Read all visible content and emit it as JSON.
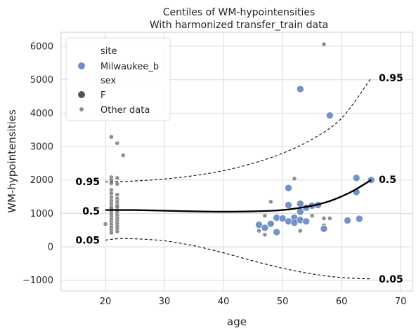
{
  "chart_data": {
    "type": "scatter",
    "title": "Centiles of WM-hypointensities",
    "subtitle": "With harmonized transfer_train data",
    "xlabel": "age",
    "ylabel": "WM-hypointensities",
    "xlim": [
      12.5,
      72
    ],
    "ylim": [
      -1320,
      6420
    ],
    "xticks": [
      20,
      30,
      40,
      50,
      60,
      70
    ],
    "yticks": [
      -1000,
      0,
      1000,
      2000,
      3000,
      4000,
      5000,
      6000
    ],
    "grid": true,
    "legend": {
      "placement": "top-left",
      "entries": [
        {
          "kind": "header",
          "label": "site"
        },
        {
          "kind": "marker",
          "label": "Milwaukee_b",
          "color": "#6b8cc4",
          "size": "large"
        },
        {
          "kind": "header",
          "label": "sex"
        },
        {
          "kind": "marker",
          "label": "F",
          "color": "#555555",
          "size": "large"
        },
        {
          "kind": "marker",
          "label": "Other data",
          "color": "#8f8f8f",
          "size": "small"
        }
      ]
    },
    "colors": {
      "site_points": "#6b8cc4",
      "other_points": "#7c7c7c",
      "median_line": "#000000",
      "outer_lines": "#000000"
    },
    "centiles": [
      {
        "label": "0.95",
        "style": "dashed",
        "left_value": 1950,
        "right_value": 5060,
        "points": [
          [
            20,
            1940
          ],
          [
            25,
            1970
          ],
          [
            30,
            2030
          ],
          [
            35,
            2130
          ],
          [
            40,
            2280
          ],
          [
            45,
            2500
          ],
          [
            50,
            2800
          ],
          [
            55,
            3220
          ],
          [
            60,
            3850
          ],
          [
            65,
            5050
          ]
        ]
      },
      {
        "label": "0.5",
        "style": "solid",
        "left_value": 1070,
        "right_value": 2010,
        "points": [
          [
            20,
            1100
          ],
          [
            25,
            1100
          ],
          [
            30,
            1080
          ],
          [
            35,
            1060
          ],
          [
            40,
            1050
          ],
          [
            45,
            1060
          ],
          [
            50,
            1100
          ],
          [
            55,
            1230
          ],
          [
            58,
            1370
          ],
          [
            60,
            1510
          ],
          [
            62,
            1680
          ],
          [
            65,
            2000
          ]
        ]
      },
      {
        "label": "0.05",
        "style": "dashed",
        "left_value": 200,
        "right_value": -960,
        "points": [
          [
            20,
            200
          ],
          [
            22,
            240
          ],
          [
            25,
            240
          ],
          [
            30,
            180
          ],
          [
            35,
            30
          ],
          [
            40,
            -180
          ],
          [
            45,
            -420
          ],
          [
            50,
            -640
          ],
          [
            55,
            -810
          ],
          [
            60,
            -920
          ],
          [
            65,
            -960
          ]
        ]
      }
    ],
    "series": [
      {
        "name": "Milwaukee_b",
        "marker": "large",
        "points": [
          [
            53,
            4720
          ],
          [
            58,
            3930
          ],
          [
            62.5,
            2060
          ],
          [
            65,
            2000
          ],
          [
            51,
            1760
          ],
          [
            62.5,
            1640
          ],
          [
            51,
            1250
          ],
          [
            53,
            1290
          ],
          [
            55,
            1230
          ],
          [
            56,
            1250
          ],
          [
            54,
            1170
          ],
          [
            53,
            1050
          ],
          [
            46,
            660
          ],
          [
            47,
            570
          ],
          [
            48,
            690
          ],
          [
            49,
            870
          ],
          [
            50,
            850
          ],
          [
            51,
            760
          ],
          [
            52,
            870
          ],
          [
            52,
            720
          ],
          [
            53,
            800
          ],
          [
            54,
            760
          ],
          [
            57,
            540
          ],
          [
            61,
            790
          ],
          [
            63,
            840
          ],
          [
            49,
            440
          ]
        ]
      },
      {
        "name": "Other data",
        "marker": "small",
        "points": [
          [
            57,
            6060
          ],
          [
            21,
            3290
          ],
          [
            22,
            3100
          ],
          [
            23,
            2740
          ],
          [
            52,
            2040
          ],
          [
            48,
            1350
          ],
          [
            47,
            930
          ],
          [
            46,
            480
          ],
          [
            47,
            360
          ],
          [
            53,
            480
          ],
          [
            57,
            850
          ],
          [
            58,
            850
          ],
          [
            55,
            930
          ],
          [
            53,
            860
          ],
          [
            57,
            640
          ],
          [
            21,
            2080
          ],
          [
            21,
            2000
          ],
          [
            22,
            2060
          ],
          [
            21,
            1900
          ],
          [
            22,
            1880
          ],
          [
            21,
            1700
          ],
          [
            21,
            1600
          ],
          [
            22,
            1560
          ],
          [
            21,
            1480
          ],
          [
            22,
            1440
          ],
          [
            21,
            1380
          ],
          [
            22,
            1350
          ],
          [
            21,
            1300
          ],
          [
            22,
            1260
          ],
          [
            21,
            1220
          ],
          [
            22,
            1180
          ],
          [
            21,
            1140
          ],
          [
            22,
            1100
          ],
          [
            21,
            1060
          ],
          [
            22,
            1020
          ],
          [
            21,
            980
          ],
          [
            22,
            940
          ],
          [
            21,
            900
          ],
          [
            22,
            860
          ],
          [
            21,
            820
          ],
          [
            22,
            780
          ],
          [
            21,
            740
          ],
          [
            22,
            700
          ],
          [
            21,
            660
          ],
          [
            22,
            620
          ],
          [
            21,
            580
          ],
          [
            22,
            540
          ],
          [
            21,
            500
          ],
          [
            22,
            460
          ],
          [
            21,
            420
          ],
          [
            20,
            680
          ],
          [
            21,
            1160
          ],
          [
            22,
            1210
          ]
        ]
      }
    ]
  }
}
